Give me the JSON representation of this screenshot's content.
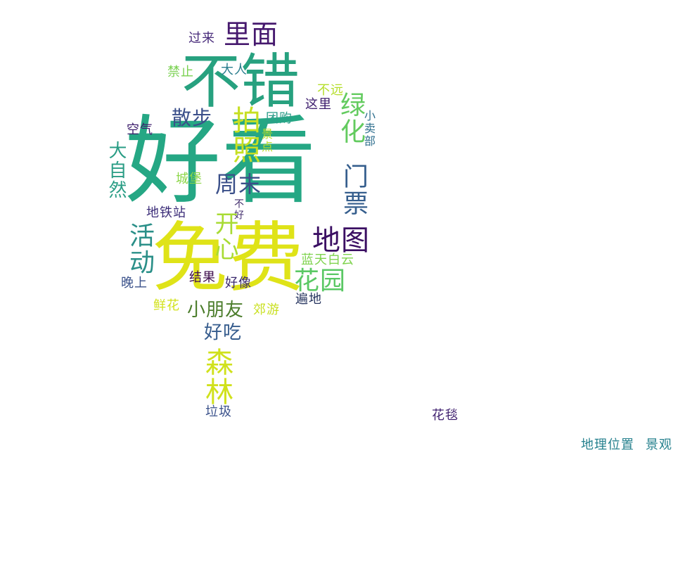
{
  "colors": {
    "dark_purple": "#440154",
    "indigo": "#3b528b",
    "teal": "#21918c",
    "green": "#2ca86a",
    "lime": "#5ec962",
    "yellow_green": "#addc30",
    "yellow": "#e6e419"
  },
  "words": [
    {
      "text": "好看"
    },
    {
      "text": "免费"
    },
    {
      "text": "不错"
    },
    {
      "text": "里面"
    },
    {
      "text": "过来"
    },
    {
      "text": "禁止"
    },
    {
      "text": "大人"
    },
    {
      "text": "不远"
    },
    {
      "text": "这里"
    },
    {
      "text": "绿化"
    },
    {
      "text": "小卖部"
    },
    {
      "text": "散步"
    },
    {
      "text": "拍照"
    },
    {
      "text": "团购"
    },
    {
      "text": "景点"
    },
    {
      "text": "空气"
    },
    {
      "text": "大自然"
    },
    {
      "text": "周末"
    },
    {
      "text": "城堡"
    },
    {
      "text": "门票"
    },
    {
      "text": "地铁站"
    },
    {
      "text": "不好"
    },
    {
      "text": "开心"
    },
    {
      "text": "地图"
    },
    {
      "text": "活动"
    },
    {
      "text": "蓝天白云"
    },
    {
      "text": "花园"
    },
    {
      "text": "晚上"
    },
    {
      "text": "结果"
    },
    {
      "text": "好像"
    },
    {
      "text": "遍地"
    },
    {
      "text": "鲜花"
    },
    {
      "text": "小朋友"
    },
    {
      "text": "郊游"
    },
    {
      "text": "好吃"
    },
    {
      "text": "森林"
    },
    {
      "text": "垃圾"
    },
    {
      "text": "花毯"
    },
    {
      "text": "地理位置"
    },
    {
      "text": "景观"
    }
  ]
}
